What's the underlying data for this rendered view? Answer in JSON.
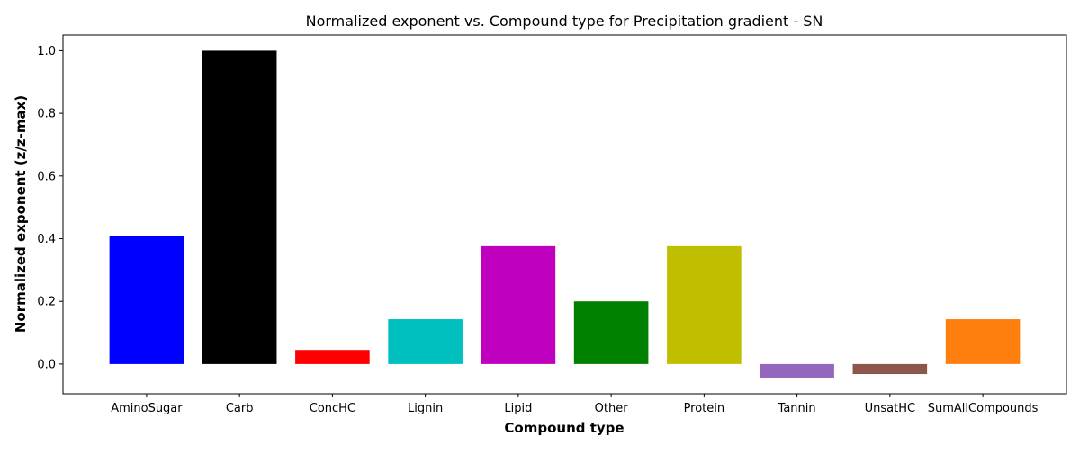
{
  "chart_data": {
    "type": "bar",
    "title": "Normalized exponent vs. Compound type for Precipitation gradient - SN",
    "xlabel": "Compound type",
    "ylabel": "Normalized exponent (z/z-max)",
    "categories": [
      "AminoSugar",
      "Carb",
      "ConcHC",
      "Lignin",
      "Lipid",
      "Other",
      "Protein",
      "Tannin",
      "UnsatHC",
      "SumAllCompounds"
    ],
    "values": [
      0.41,
      1.0,
      0.045,
      0.143,
      0.376,
      0.2,
      0.376,
      -0.045,
      -0.032,
      0.143
    ],
    "colors": [
      "#0000ff",
      "#000000",
      "#ff0000",
      "#00bfbf",
      "#bf00bf",
      "#008000",
      "#bfbf00",
      "#9467bd",
      "#8c564b",
      "#ff7f0e"
    ],
    "ylim": [
      -0.095,
      1.05
    ],
    "yticks": [
      0.0,
      0.2,
      0.4,
      0.6,
      0.8,
      1.0
    ],
    "ytick_labels": [
      "0.0",
      "0.2",
      "0.4",
      "0.6",
      "0.8",
      "1.0"
    ],
    "grid": false,
    "legend": "none"
  }
}
